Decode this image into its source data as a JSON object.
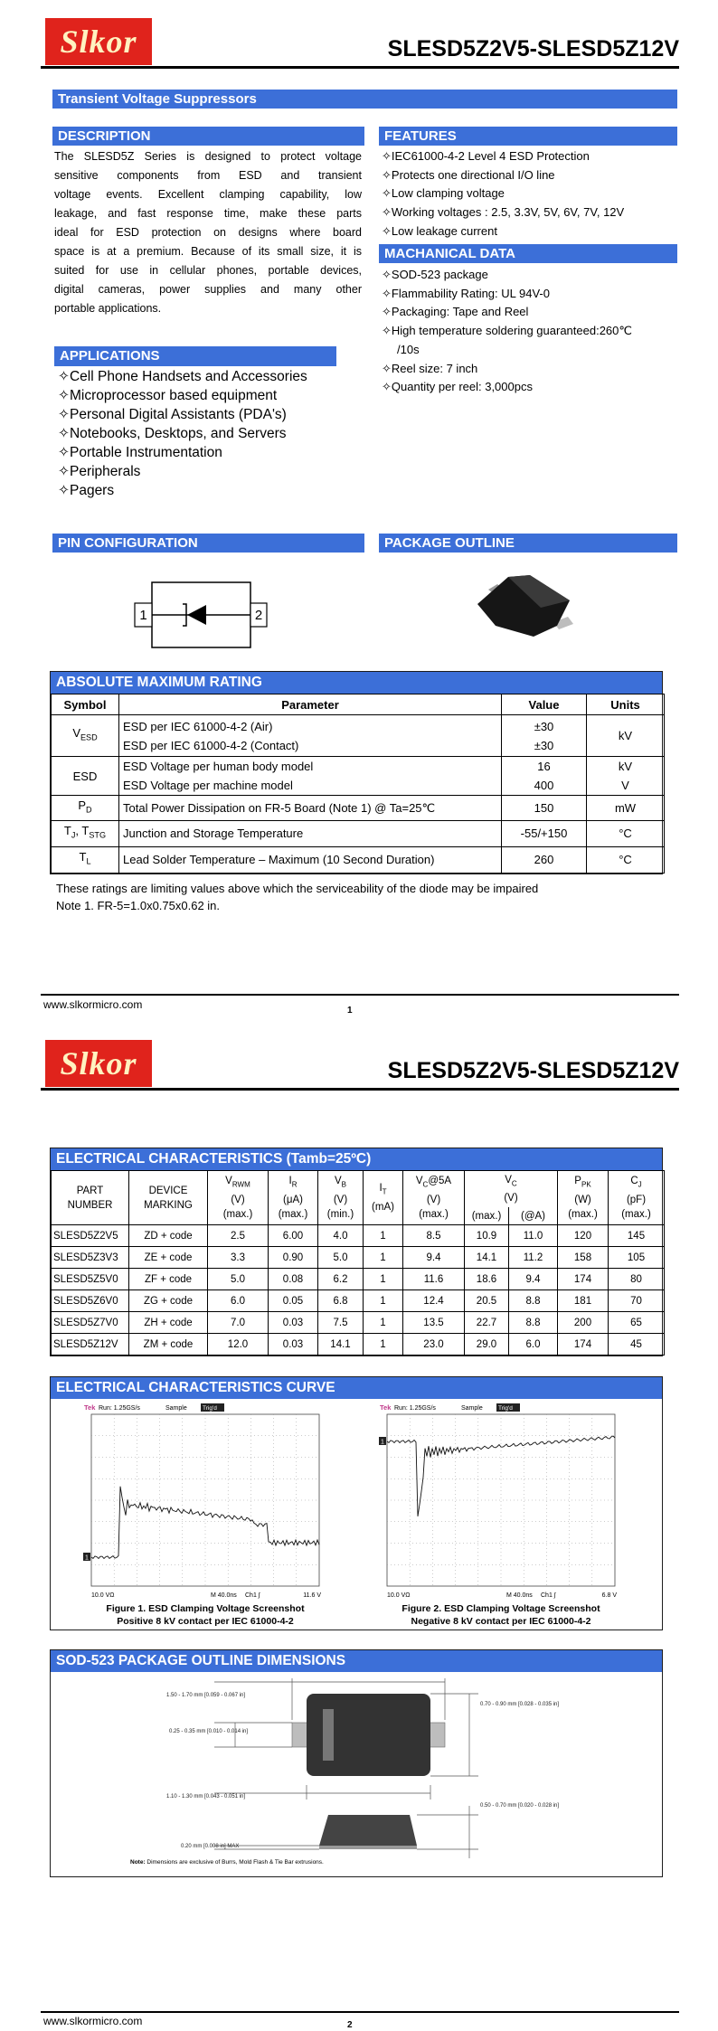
{
  "header": {
    "logo": "Slkor",
    "title": "SLESD5Z2V5-SLESD5Z12V"
  },
  "banner": "Transient Voltage Suppressors",
  "description": {
    "heading": "DESCRIPTION",
    "lines": [
      "The SLESD5Z  Series is designed to protect voltage",
      "sensitive components from ESD and transient",
      "voltage events. Excellent clamping capability, low",
      "leakage, and fast response time, make these parts",
      "ideal for ESD protection on designs where board",
      "space is at a premium. Because of its small size, it is",
      "suited for use in cellular phones, portable devices,",
      "digital cameras, power supplies and many other",
      "portable applications."
    ]
  },
  "features": {
    "heading": "FEATURES",
    "items": [
      "✧IEC61000-4-2 Level 4 ESD Protection",
      "✧Protects one directional I/O line",
      "✧Low clamping voltage",
      "✧Working voltages : 2.5, 3.3V, 5V, 6V, 7V, 12V",
      "✧Low leakage current"
    ]
  },
  "mechanical": {
    "heading": "MACHANICAL DATA",
    "items": [
      "✧SOD-523 package",
      "✧Flammability Rating: UL 94V-0",
      "✧Packaging: Tape and Reel",
      [
        "✧High temperature soldering guaranteed:260℃",
        "/10s"
      ],
      "✧Reel size: 7 inch",
      "✧Quantity per reel: 3,000pcs"
    ]
  },
  "applications": {
    "heading": "APPLICATIONS",
    "items": [
      "✧Cell Phone Handsets and Accessories",
      "✧Microprocessor based equipment",
      "✧Personal Digital Assistants (PDA's)",
      "✧Notebooks, Desktops, and Servers",
      "✧Portable Instrumentation",
      "✧Peripherals",
      "✧Pagers"
    ]
  },
  "pin_configuration": {
    "heading": "PIN CONFIGURATION",
    "pins": [
      "1",
      "2"
    ]
  },
  "package_outline": {
    "heading": "PACKAGE OUTLINE"
  },
  "absolute_max": {
    "heading": "ABSOLUTE MAXIMUM RATING",
    "columns": [
      "Symbol",
      "Parameter",
      "Value",
      "Units"
    ],
    "rows": [
      {
        "symbol": [
          "V",
          "ESD"
        ],
        "params": [
          "ESD per IEC 61000-4-2 (Air)",
          "ESD per IEC 61000-4-2 (Contact)"
        ],
        "values": [
          "±30",
          "±30"
        ],
        "units": [
          "kV"
        ]
      },
      {
        "symbol": [
          "ESD"
        ],
        "params": [
          "ESD Voltage per human body model",
          "ESD Voltage per machine model"
        ],
        "values": [
          "16",
          "400"
        ],
        "units": [
          "kV",
          "V"
        ]
      },
      {
        "symbol": [
          "P",
          "D"
        ],
        "params": [
          "Total Power Dissipation on FR-5 Board (Note 1) @ Ta=25℃"
        ],
        "values": [
          "150"
        ],
        "units": [
          "mW"
        ]
      },
      {
        "symbol": [
          "T",
          "J",
          ", T",
          "STG"
        ],
        "params": [
          "Junction and Storage Temperature"
        ],
        "values": [
          "-55/+150"
        ],
        "units": [
          "°C"
        ]
      },
      {
        "symbol": [
          "T",
          "L"
        ],
        "params": [
          "Lead Solder Temperature – Maximum (10 Second Duration)"
        ],
        "values": [
          "260"
        ],
        "units": [
          "°C"
        ]
      }
    ]
  },
  "notes": [
    "These ratings are limiting values above which the serviceability of the diode may be impaired",
    "Note 1. FR-5=1.0x0.75x0.62 in."
  ],
  "footer": {
    "url": "www.slkormicro.com",
    "pages": [
      "1",
      "2"
    ]
  },
  "electrical": {
    "heading": "ELECTRICAL CHARACTERISTICS (Tamb=25ºC)",
    "columns": [
      {
        "lines": [
          [
            "PART"
          ],
          [
            "NUMBER"
          ]
        ]
      },
      {
        "lines": [
          [
            "DEVICE"
          ],
          [
            "MARKING"
          ]
        ]
      },
      {
        "lines": [
          [
            "V",
            "RWM"
          ],
          [
            "(V)"
          ],
          [
            "(max.)"
          ]
        ]
      },
      {
        "lines": [
          [
            "I",
            "R"
          ],
          [
            "(μA)"
          ],
          [
            "(max.)"
          ]
        ]
      },
      {
        "lines": [
          [
            "V",
            "B"
          ],
          [
            "(V)"
          ],
          [
            "(min.)"
          ]
        ]
      },
      {
        "lines": [
          [
            "I",
            "T"
          ],
          [
            "(mA)"
          ]
        ]
      },
      {
        "lines": [
          [
            "V",
            "C",
            "@5A"
          ],
          [
            "(V)"
          ],
          [
            "(max.)"
          ]
        ]
      },
      {
        "lines": [
          [
            "V",
            "C"
          ],
          [
            "(V)"
          ]
        ],
        "sub_columns": [
          "(max.)",
          "(@A)"
        ]
      },
      {
        "lines": [
          [
            "P",
            "PK"
          ],
          [
            "(W)"
          ],
          [
            "(max.)"
          ]
        ]
      },
      {
        "lines": [
          [
            "C",
            "J"
          ],
          [
            "(pF)"
          ],
          [
            "(max.)"
          ]
        ]
      }
    ],
    "rows": [
      [
        "SLESD5Z2V5",
        "ZD + code",
        "2.5",
        "6.00",
        "4.0",
        "1",
        "8.5",
        "10.9",
        "11.0",
        "120",
        "145"
      ],
      [
        "SLESD5Z3V3",
        "ZE + code",
        "3.3",
        "0.90",
        "5.0",
        "1",
        "9.4",
        "14.1",
        "11.2",
        "158",
        "105"
      ],
      [
        "SLESD5Z5V0",
        "ZF + code",
        "5.0",
        "0.08",
        "6.2",
        "1",
        "11.6",
        "18.6",
        "9.4",
        "174",
        "80"
      ],
      [
        "SLESD5Z6V0",
        "ZG + code",
        "6.0",
        "0.05",
        "6.8",
        "1",
        "12.4",
        "20.5",
        "8.8",
        "181",
        "70"
      ],
      [
        "SLESD5Z7V0",
        "ZH + code",
        "7.0",
        "0.03",
        "7.5",
        "1",
        "13.5",
        "22.7",
        "8.8",
        "200",
        "65"
      ],
      [
        "SLESD5Z12V",
        "ZM + code",
        "12.0",
        "0.03",
        "14.1",
        "1",
        "23.0",
        "29.0",
        "6.0",
        "174",
        "45"
      ]
    ]
  },
  "curve": {
    "heading": "ELECTRICAL CHARACTERISTICS CURVE",
    "figures": [
      {
        "caption": [
          "Figure 1. ESD Clamping Voltage Screenshot",
          "Positive 8 kV contact per IEC 61000-4-2"
        ],
        "scope": {
          "brand": "Tek",
          "run": "Run: 1.25GS/s",
          "mode": "Sample",
          "trig": "Trig'd",
          "marker": "1",
          "scale": "10.0 VΩ",
          "time": "M 40.0ns",
          "channel": "Ch1 ∫",
          "level": "11.6 V"
        }
      },
      {
        "caption": [
          "Figure 2. ESD Clamping Voltage Screenshot",
          "Negative 8 kV contact per IEC 61000-4-2"
        ],
        "scope": {
          "brand": "Tek",
          "run": "Run: 1.25GS/s",
          "mode": "Sample",
          "trig": "Trig'd",
          "marker": "1",
          "scale": "10.0 VΩ",
          "time": "M 40.0ns",
          "channel": "Ch1 ∫",
          "level": "6.8 V"
        }
      }
    ]
  },
  "outline_dims": {
    "heading": "SOD-523 PACKAGE OUTLINE DIMENSIONS",
    "labels": [
      "1.50 - 1.70 mm [0.059 - 0.067 in]",
      "0.25 - 0.35 mm [0.010 - 0.014 in]",
      "1.10 - 1.30 mm [0.043 - 0.051 in]",
      "0.20 mm [0.008 in] MAX",
      "0.70 - 0.90 mm [0.028 - 0.035 in]",
      "0.50 - 0.70 mm [0.020 - 0.028 in]"
    ],
    "note": [
      "Note:",
      " Dimensions are exclusive of Burrs, Mold Flash & Tie Bar extrusions."
    ]
  }
}
